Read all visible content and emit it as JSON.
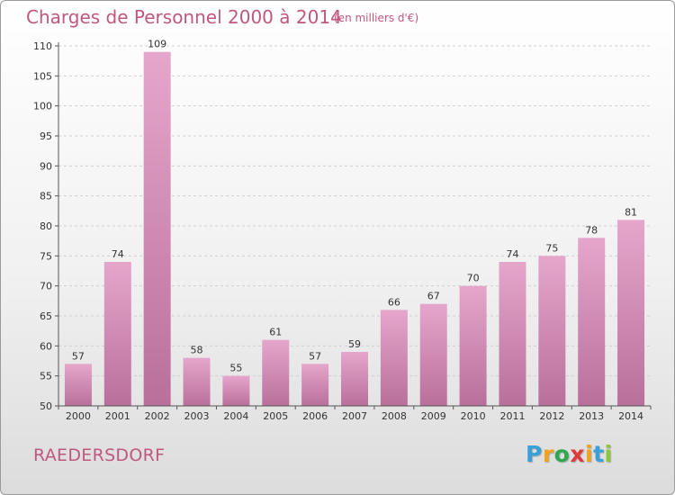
{
  "header": {
    "title": "Charges de Personnel 2000 à 2014",
    "subtitle": "(en milliers d'€)"
  },
  "footer": {
    "commune": "RAEDERSDORF",
    "logo_letters": [
      "P",
      "r",
      "o",
      "x",
      "i",
      "t",
      "i"
    ]
  },
  "colors": {
    "accent": "#c0577f",
    "bar_top": "#e6a6cc",
    "bar_bottom": "#b8709a",
    "logo": [
      "#3aa0d8",
      "#f2a31b",
      "#2fa84f",
      "#e03a3a",
      "#f2a31b",
      "#3aa0d8",
      "#8cc63f"
    ]
  },
  "chart_data": {
    "type": "bar",
    "categories": [
      "2000",
      "2001",
      "2002",
      "2003",
      "2004",
      "2005",
      "2006",
      "2007",
      "2008",
      "2009",
      "2010",
      "2011",
      "2012",
      "2013",
      "2014"
    ],
    "values": [
      57,
      74,
      109,
      58,
      55,
      61,
      57,
      59,
      66,
      67,
      70,
      74,
      75,
      78,
      81
    ],
    "ylim": [
      50,
      110
    ],
    "yticks": [
      50,
      55,
      60,
      65,
      70,
      75,
      80,
      85,
      90,
      95,
      100,
      105,
      110
    ],
    "grid": true,
    "data_labels": true
  }
}
